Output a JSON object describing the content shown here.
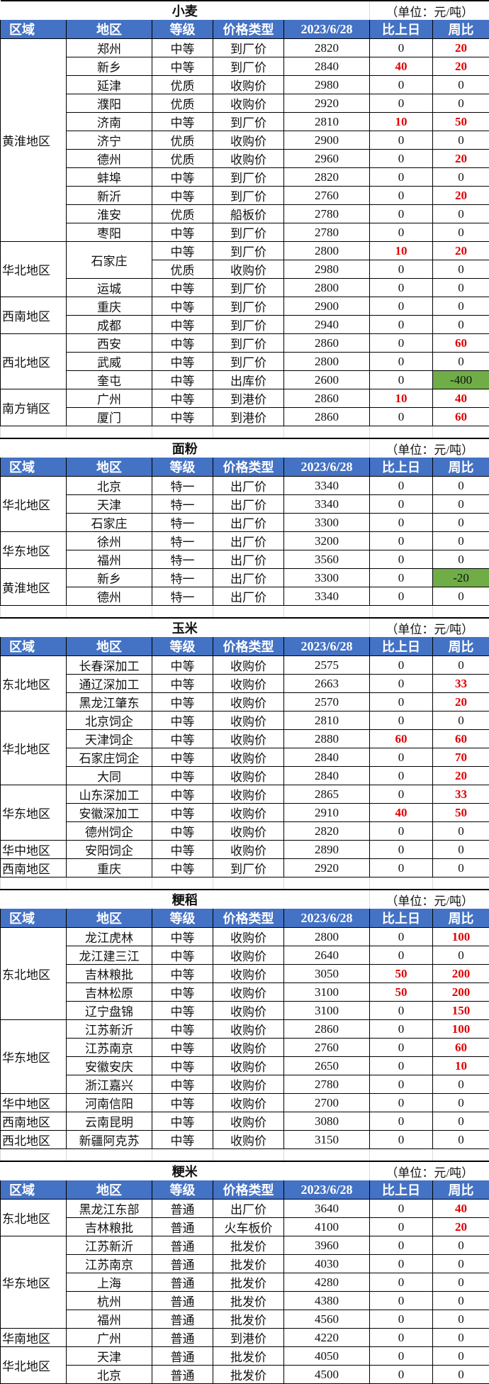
{
  "headers": [
    "区域",
    "地区",
    "等级",
    "价格类型",
    "2023/6/28",
    "比上日",
    "周比"
  ],
  "unit": "（单位：元/吨）",
  "colors": {
    "header_bg": "#4472C4",
    "up": "#E00000",
    "down_bg": "#70AD47"
  },
  "sections": [
    {
      "title": "小麦",
      "groups": [
        {
          "region": "黄淮地区",
          "rows": [
            [
              "郑州",
              "中等",
              "到厂价",
              "2820",
              "0",
              "20"
            ],
            [
              "新乡",
              "中等",
              "到厂价",
              "2840",
              "40",
              "20"
            ],
            [
              "延津",
              "优质",
              "收购价",
              "2980",
              "0",
              "0"
            ],
            [
              "濮阳",
              "优质",
              "收购价",
              "2920",
              "0",
              "0"
            ],
            [
              "济南",
              "中等",
              "到厂价",
              "2810",
              "10",
              "50"
            ],
            [
              "济宁",
              "优质",
              "收购价",
              "2900",
              "0",
              "0"
            ],
            [
              "德州",
              "优质",
              "收购价",
              "2960",
              "0",
              "20"
            ],
            [
              "蚌埠",
              "中等",
              "到厂价",
              "2820",
              "0",
              "0"
            ],
            [
              "新沂",
              "中等",
              "到厂价",
              "2760",
              "0",
              "20"
            ],
            [
              "淮安",
              "优质",
              "船板价",
              "2780",
              "0",
              "0"
            ],
            [
              "枣阳",
              "中等",
              "到厂价",
              "2780",
              "0",
              "0"
            ]
          ]
        },
        {
          "region": "华北地区",
          "rows": [
            [
              "石家庄",
              "中等",
              "到厂价",
              "2800",
              "10",
              "20"
            ],
            [
              "石家庄",
              "优质",
              "收购价",
              "2980",
              "0",
              "0"
            ],
            [
              "运城",
              "中等",
              "到厂价",
              "2800",
              "0",
              "0"
            ]
          ]
        },
        {
          "region": "西南地区",
          "rows": [
            [
              "重庆",
              "中等",
              "到厂价",
              "2900",
              "0",
              "0"
            ],
            [
              "成都",
              "中等",
              "到厂价",
              "2940",
              "0",
              "0"
            ]
          ]
        },
        {
          "region": "西北地区",
          "rows": [
            [
              "西安",
              "中等",
              "到厂价",
              "2860",
              "0",
              "60"
            ],
            [
              "武威",
              "中等",
              "到厂价",
              "2800",
              "0",
              "0"
            ],
            [
              "奎屯",
              "中等",
              "出库价",
              "2600",
              "0",
              "-400"
            ]
          ]
        },
        {
          "region": "南方销区",
          "rows": [
            [
              "广州",
              "中等",
              "到港价",
              "2860",
              "10",
              "40"
            ],
            [
              "厦门",
              "中等",
              "到港价",
              "2860",
              "0",
              "60"
            ]
          ]
        }
      ]
    },
    {
      "title": "面粉",
      "groups": [
        {
          "region": "华北地区",
          "rows": [
            [
              "北京",
              "特一",
              "出厂价",
              "3340",
              "0",
              "0"
            ],
            [
              "天津",
              "特一",
              "出厂价",
              "3340",
              "0",
              "0"
            ],
            [
              "石家庄",
              "特一",
              "出厂价",
              "3300",
              "0",
              "0"
            ]
          ]
        },
        {
          "region": "华东地区",
          "rows": [
            [
              "徐州",
              "特一",
              "出厂价",
              "3200",
              "0",
              "0"
            ],
            [
              "福州",
              "特一",
              "出厂价",
              "3560",
              "0",
              "0"
            ]
          ]
        },
        {
          "region": "黄淮地区",
          "rows": [
            [
              "新乡",
              "特一",
              "出厂价",
              "3300",
              "0",
              "-20"
            ],
            [
              "德州",
              "特一",
              "出厂价",
              "3340",
              "0",
              "0"
            ]
          ]
        }
      ]
    },
    {
      "title": "玉米",
      "groups": [
        {
          "region": "东北地区",
          "rows": [
            [
              "长春深加工",
              "中等",
              "收购价",
              "2575",
              "0",
              "0"
            ],
            [
              "通辽深加工",
              "中等",
              "收购价",
              "2663",
              "0",
              "33"
            ],
            [
              "黑龙江肇东",
              "中等",
              "收购价",
              "2570",
              "0",
              "20"
            ]
          ]
        },
        {
          "region": "华北地区",
          "rows": [
            [
              "北京饲企",
              "中等",
              "收购价",
              "2810",
              "0",
              "0"
            ],
            [
              "天津饲企",
              "中等",
              "收购价",
              "2880",
              "60",
              "60"
            ],
            [
              "石家庄饲企",
              "中等",
              "收购价",
              "2840",
              "0",
              "70"
            ],
            [
              "大同",
              "中等",
              "收购价",
              "2840",
              "0",
              "20"
            ]
          ]
        },
        {
          "region": "华东地区",
          "rows": [
            [
              "山东深加工",
              "中等",
              "收购价",
              "2865",
              "0",
              "33"
            ],
            [
              "安徽深加工",
              "中等",
              "收购价",
              "2910",
              "40",
              "50"
            ],
            [
              "德州饲企",
              "中等",
              "收购价",
              "2820",
              "0",
              "0"
            ]
          ]
        },
        {
          "region": "华中地区",
          "rows": [
            [
              "安阳饲企",
              "中等",
              "收购价",
              "2890",
              "0",
              "0"
            ]
          ]
        },
        {
          "region": "西南地区",
          "rows": [
            [
              "重庆",
              "中等",
              "到厂价",
              "2920",
              "0",
              "0"
            ]
          ]
        }
      ]
    },
    {
      "title": "粳稻",
      "groups": [
        {
          "region": "东北地区",
          "rows": [
            [
              "龙江虎林",
              "中等",
              "收购价",
              "2800",
              "0",
              "100"
            ],
            [
              "龙江建三江",
              "中等",
              "收购价",
              "2640",
              "0",
              "0"
            ],
            [
              "吉林粮批",
              "中等",
              "收购价",
              "3050",
              "50",
              "200"
            ],
            [
              "吉林松原",
              "中等",
              "收购价",
              "3100",
              "50",
              "200"
            ],
            [
              "辽宁盘锦",
              "中等",
              "收购价",
              "3100",
              "0",
              "150"
            ]
          ]
        },
        {
          "region": "华东地区",
          "rows": [
            [
              "江苏新沂",
              "中等",
              "收购价",
              "2860",
              "0",
              "100"
            ],
            [
              "江苏南京",
              "中等",
              "收购价",
              "2760",
              "0",
              "60"
            ],
            [
              "安徽安庆",
              "中等",
              "收购价",
              "2650",
              "0",
              "10"
            ],
            [
              "浙江嘉兴",
              "中等",
              "收购价",
              "2780",
              "0",
              "0"
            ]
          ]
        },
        {
          "region": "华中地区",
          "rows": [
            [
              "河南信阳",
              "中等",
              "收购价",
              "2700",
              "0",
              "0"
            ]
          ]
        },
        {
          "region": "西南地区",
          "rows": [
            [
              "云南昆明",
              "中等",
              "收购价",
              "3080",
              "0",
              "0"
            ]
          ]
        },
        {
          "region": "西北地区",
          "rows": [
            [
              "新疆阿克苏",
              "中等",
              "收购价",
              "3150",
              "0",
              "0"
            ]
          ]
        }
      ]
    },
    {
      "title": "粳米",
      "groups": [
        {
          "region": "东北地区",
          "rows": [
            [
              "黑龙江东部",
              "普通",
              "出厂价",
              "3640",
              "0",
              "40"
            ],
            [
              "吉林粮批",
              "普通",
              "火车板价",
              "4100",
              "0",
              "20"
            ]
          ]
        },
        {
          "region": "华东地区",
          "rows": [
            [
              "江苏新沂",
              "普通",
              "批发价",
              "3960",
              "0",
              "0"
            ],
            [
              "江苏南京",
              "普通",
              "批发价",
              "4030",
              "0",
              "0"
            ],
            [
              "上海",
              "普通",
              "批发价",
              "4280",
              "0",
              "0"
            ],
            [
              "杭州",
              "普通",
              "批发价",
              "4380",
              "0",
              "0"
            ],
            [
              "福州",
              "普通",
              "批发价",
              "4560",
              "0",
              "0"
            ]
          ]
        },
        {
          "region": "华南地区",
          "rows": [
            [
              "广州",
              "普通",
              "到港价",
              "4220",
              "0",
              "0"
            ]
          ]
        },
        {
          "region": "华北地区",
          "rows": [
            [
              "天津",
              "普通",
              "批发价",
              "4050",
              "0",
              "0"
            ],
            [
              "北京",
              "普通",
              "批发价",
              "4500",
              "0",
              "0"
            ]
          ]
        }
      ]
    }
  ]
}
